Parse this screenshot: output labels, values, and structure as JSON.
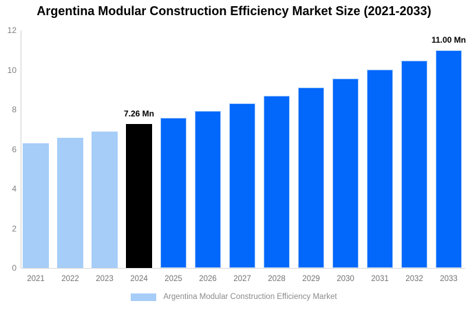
{
  "chart_data": {
    "type": "bar",
    "title": "Argentina Modular Construction Efficiency Market Size (2021-2033)",
    "categories": [
      "2021",
      "2022",
      "2023",
      "2024",
      "2025",
      "2026",
      "2027",
      "2028",
      "2029",
      "2030",
      "2031",
      "2032",
      "2033"
    ],
    "values": [
      6.3,
      6.57,
      6.9,
      7.26,
      7.58,
      7.94,
      8.32,
      8.71,
      9.12,
      9.56,
      10.01,
      10.48,
      11.0
    ],
    "unit": "Mn",
    "xlabel": "",
    "ylabel": "",
    "ylim": [
      0,
      12
    ],
    "yticks": [
      0,
      2,
      4,
      6,
      8,
      10,
      12
    ],
    "grid": false,
    "legend": {
      "label": "Argentina Modular Construction Efficiency Market",
      "position": "bottom"
    },
    "data_labels": [
      {
        "index": 3,
        "text": "7.26 Mn"
      },
      {
        "index": 12,
        "text": "11.00 Mn"
      }
    ],
    "color_roles": [
      "historical",
      "historical",
      "historical",
      "current",
      "forecast",
      "forecast",
      "forecast",
      "forecast",
      "forecast",
      "forecast",
      "forecast",
      "forecast",
      "forecast"
    ],
    "colors": {
      "historical": "#a6cdf8",
      "current": "#000000",
      "forecast": "#0267fb",
      "bar_stroke": "#a9cef7",
      "axis_line": "#d0d0d0",
      "tick_text": "#808080",
      "legend_text": "#8c8c8c",
      "title_text": "#000000"
    }
  }
}
